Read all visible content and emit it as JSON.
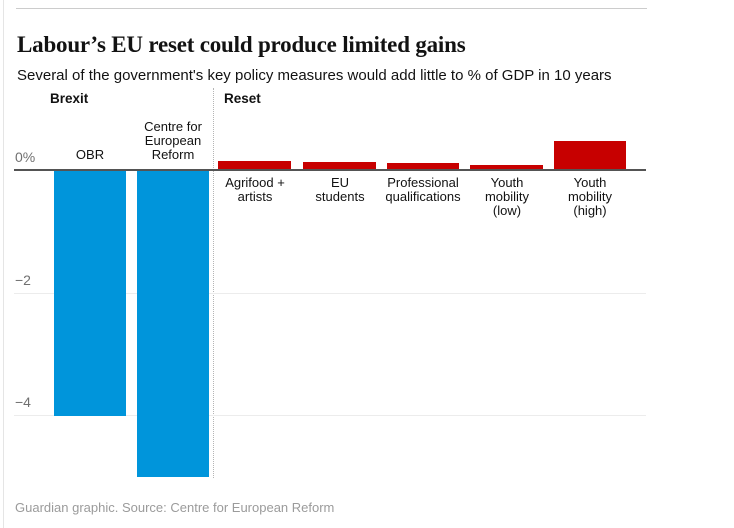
{
  "header": {
    "title": "Labour’s EU reset could produce limited gains",
    "subtitle": "Several of the government's key policy measures would add little to % of GDP in 10 years"
  },
  "footer": {
    "credit": "Guardian graphic. Source: Centre for European Reform"
  },
  "chart_data": {
    "type": "bar",
    "title": "Labour’s EU reset could produce limited gains",
    "subtitle": "Several of the government's key policy measures would add little to % of GDP in 10 years",
    "unit": "% of GDP after 10 years",
    "ylim": [
      -5.1,
      0.5
    ],
    "grid": true,
    "yticks": [
      {
        "value": 0,
        "label": "0%"
      },
      {
        "value": -2,
        "label": "−2"
      },
      {
        "value": -4,
        "label": "−4"
      }
    ],
    "groups": [
      {
        "name": "Brexit",
        "color": "#0095db"
      },
      {
        "name": "Reset",
        "color": "#c70000"
      }
    ],
    "bars": [
      {
        "group": "Brexit",
        "label": "OBR",
        "label_lines": "OBR",
        "value": -4.0
      },
      {
        "group": "Brexit",
        "label": "Centre for European Reform",
        "label_lines": "Centre for\nEuropean\nReform",
        "value": -5.0
      },
      {
        "group": "Reset",
        "label": "Agrifood + artists",
        "label_lines": "Agrifood +\nartists",
        "value": 0.13
      },
      {
        "group": "Reset",
        "label": "EU students",
        "label_lines": "EU\nstudents",
        "value": 0.11
      },
      {
        "group": "Reset",
        "label": "Professional qualifications",
        "label_lines": "Professional\nqualifications",
        "value": 0.1
      },
      {
        "group": "Reset",
        "label": "Youth mobility (low)",
        "label_lines": "Youth\nmobility\n(low)",
        "value": 0.06
      },
      {
        "group": "Reset",
        "label": "Youth mobility (high)",
        "label_lines": "Youth\nmobility\n(high)",
        "value": 0.45
      }
    ]
  }
}
